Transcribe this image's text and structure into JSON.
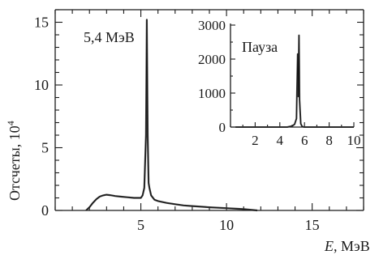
{
  "chart_data": [
    {
      "type": "line",
      "xlabel_italic": "E",
      "xlabel_rest": ", МэВ",
      "ylabel_base": "Отсчеты, 10",
      "ylabel_exp": "4",
      "annotation": "5,4 МэВ",
      "xlim": [
        0,
        18
      ],
      "ylim": [
        0,
        16
      ],
      "xticks": [
        5,
        10,
        15
      ],
      "yticks": [
        0,
        5,
        10,
        15
      ],
      "series": [
        {
          "x": [
            1.8,
            2.0,
            2.2,
            2.4,
            2.6,
            2.8,
            3.0,
            3.2,
            3.5,
            3.8,
            4.2,
            4.6,
            5.0,
            5.1,
            5.2,
            5.25,
            5.3,
            5.35,
            5.4,
            5.45,
            5.5,
            5.6,
            5.8,
            6.0,
            6.5,
            7.0,
            7.5,
            8.0,
            9.0,
            10.0,
            11.0,
            11.8
          ],
          "y": [
            0.0,
            0.25,
            0.6,
            0.9,
            1.1,
            1.2,
            1.25,
            1.22,
            1.15,
            1.1,
            1.05,
            1.0,
            1.0,
            1.2,
            1.8,
            3.8,
            6.0,
            15.2,
            6.0,
            2.2,
            1.8,
            1.2,
            0.85,
            0.75,
            0.6,
            0.5,
            0.4,
            0.35,
            0.25,
            0.18,
            0.1,
            0.0
          ]
        }
      ]
    },
    {
      "type": "line",
      "title": "Пауза",
      "xlim": [
        0,
        10
      ],
      "ylim": [
        0,
        3000
      ],
      "xticks": [
        2,
        4,
        6,
        8,
        10
      ],
      "yticks": [
        0,
        1000,
        2000,
        3000
      ],
      "series": [
        {
          "x": [
            0.4,
            4.6,
            5.0,
            5.2,
            5.35,
            5.45,
            5.5,
            5.55,
            5.6,
            5.7,
            5.8,
            5.9,
            6.0,
            10.0
          ],
          "y": [
            0,
            0,
            30,
            80,
            250,
            2150,
            900,
            2700,
            800,
            100,
            20,
            5,
            0,
            0
          ]
        }
      ]
    }
  ]
}
